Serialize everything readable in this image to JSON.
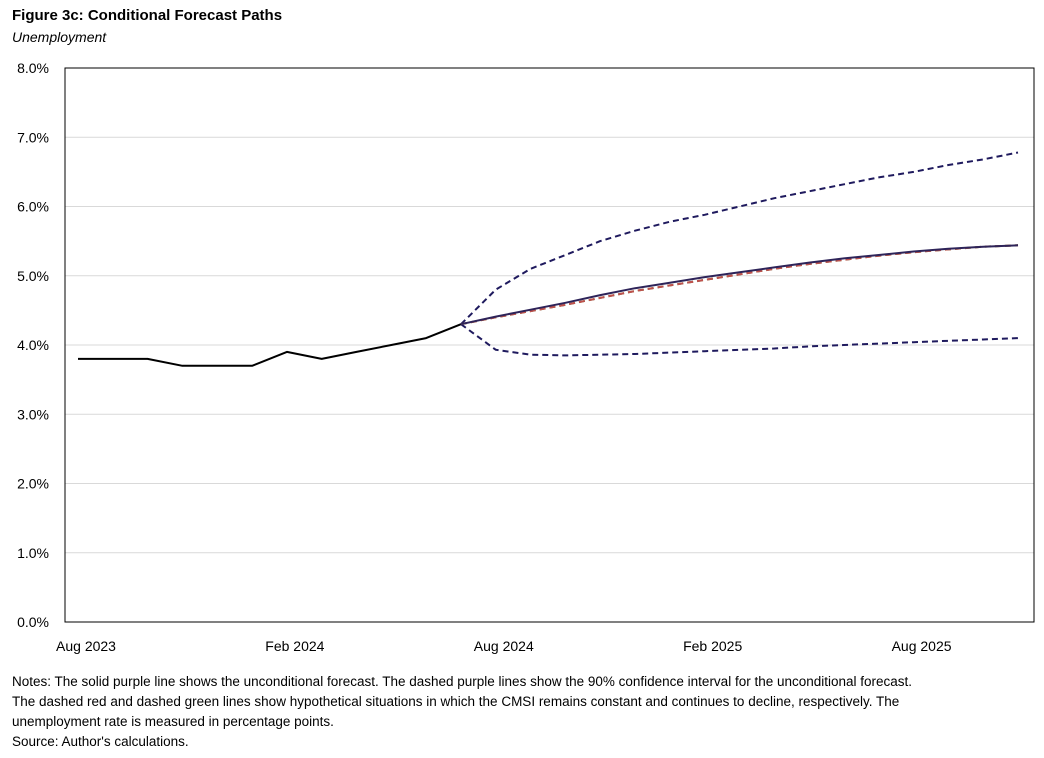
{
  "title": "Figure 3c: Conditional Forecast Paths",
  "subtitle": "Unemployment",
  "notes": [
    "Notes: The solid purple line shows the unconditional forecast. The dashed purple lines show the 90% confidence interval for the unconditional forecast.",
    "The dashed red and dashed green lines show hypothetical situations in which the CMSI remains constant and continues to decline, respectively. The",
    "unemployment rate is measured in percentage points.",
    "Source: Author's calculations."
  ],
  "chart_data": {
    "type": "line",
    "x_tick_labels": [
      "Aug 2023",
      "Feb 2024",
      "Aug 2024",
      "Feb 2025",
      "Aug 2025"
    ],
    "y_tick_labels": [
      "0.0%",
      "1.0%",
      "2.0%",
      "3.0%",
      "4.0%",
      "5.0%",
      "6.0%",
      "7.0%",
      "8.0%"
    ],
    "ylim": [
      0,
      8
    ],
    "x_range": [
      "2023-08",
      "2025-11"
    ],
    "grid": true,
    "legend": "none",
    "x": [
      "2023-08",
      "2023-09",
      "2023-10",
      "2023-11",
      "2023-12",
      "2024-01",
      "2024-02",
      "2024-03",
      "2024-04",
      "2024-05",
      "2024-06",
      "2024-07",
      "2024-08",
      "2024-09",
      "2024-10",
      "2024-11",
      "2024-12",
      "2025-01",
      "2025-02",
      "2025-03",
      "2025-04",
      "2025-05",
      "2025-06",
      "2025-07",
      "2025-08",
      "2025-09",
      "2025-10",
      "2025-11"
    ],
    "series": [
      {
        "role": "actual",
        "color": "#000000",
        "dash": false,
        "values": [
          3.8,
          3.8,
          3.8,
          3.7,
          3.7,
          3.7,
          3.9,
          3.8,
          3.9,
          4.0,
          4.1,
          4.3,
          null,
          null,
          null,
          null,
          null,
          null,
          null,
          null,
          null,
          null,
          null,
          null,
          null,
          null,
          null,
          null
        ]
      },
      {
        "role": "upper-90",
        "color": "#1f1a5e",
        "dash": true,
        "values": [
          null,
          null,
          null,
          null,
          null,
          null,
          null,
          null,
          null,
          null,
          null,
          4.3,
          4.8,
          5.1,
          5.3,
          5.5,
          5.65,
          5.78,
          5.88,
          6.0,
          6.12,
          6.22,
          6.32,
          6.42,
          6.5,
          6.6,
          6.68,
          6.78
        ]
      },
      {
        "role": "lower-90",
        "color": "#1f1a5e",
        "dash": true,
        "values": [
          null,
          null,
          null,
          null,
          null,
          null,
          null,
          null,
          null,
          null,
          null,
          4.3,
          3.93,
          3.86,
          3.85,
          3.86,
          3.87,
          3.89,
          3.91,
          3.93,
          3.95,
          3.98,
          4.0,
          4.02,
          4.04,
          4.06,
          4.08,
          4.1
        ]
      },
      {
        "role": "cmsi-decline",
        "color": "#4a7c2a",
        "dash": true,
        "values": [
          null,
          null,
          null,
          null,
          null,
          null,
          null,
          null,
          null,
          null,
          null,
          4.3,
          4.4,
          4.49,
          4.58,
          4.68,
          4.78,
          4.86,
          4.94,
          5.02,
          5.1,
          5.17,
          5.23,
          5.29,
          5.34,
          5.38,
          5.42,
          5.44
        ]
      },
      {
        "role": "cmsi-constant",
        "color": "#c0504d",
        "dash": true,
        "values": [
          null,
          null,
          null,
          null,
          null,
          null,
          null,
          null,
          null,
          null,
          null,
          4.3,
          4.4,
          4.49,
          4.58,
          4.68,
          4.78,
          4.86,
          4.94,
          5.02,
          5.1,
          5.17,
          5.23,
          5.29,
          5.34,
          5.38,
          5.42,
          5.44
        ]
      },
      {
        "role": "unconditional",
        "color": "#2e2459",
        "dash": false,
        "values": [
          null,
          null,
          null,
          null,
          null,
          null,
          null,
          null,
          null,
          null,
          null,
          4.3,
          4.41,
          4.51,
          4.61,
          4.72,
          4.82,
          4.9,
          4.98,
          5.05,
          5.12,
          5.19,
          5.25,
          5.3,
          5.35,
          5.39,
          5.42,
          5.44
        ]
      }
    ]
  }
}
